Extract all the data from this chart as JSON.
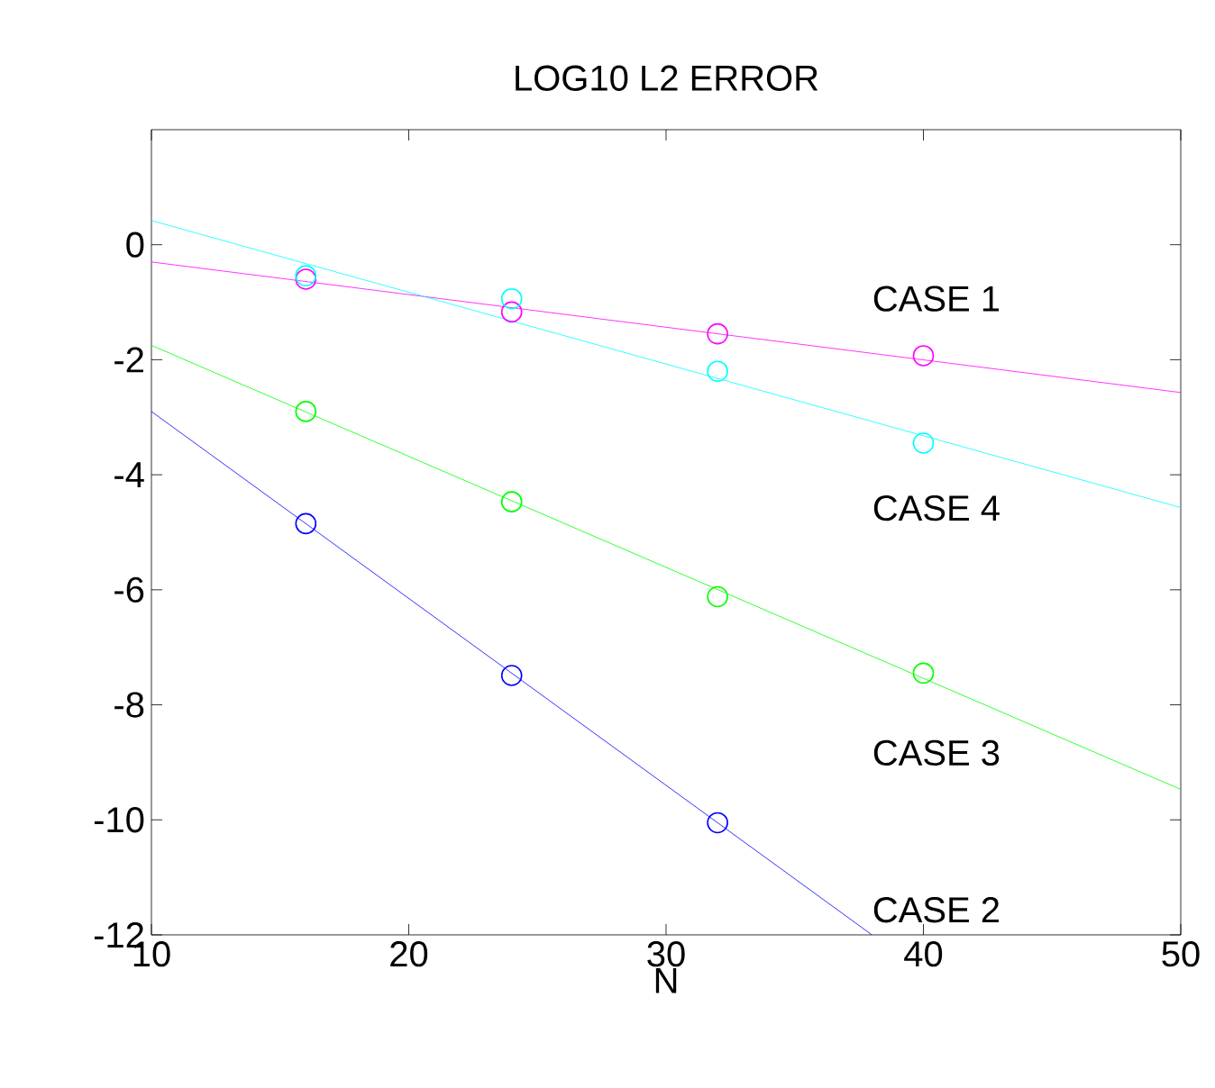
{
  "chart_data": {
    "type": "scatter",
    "title": "LOG10   L2   ERROR",
    "xlabel": "N",
    "xlim": [
      10,
      50
    ],
    "ylim": [
      -12,
      2
    ],
    "xticks": [
      10,
      20,
      30,
      40,
      50
    ],
    "yticks": [
      -12,
      -10,
      -8,
      -6,
      -4,
      -2,
      0
    ],
    "grid": false,
    "marker": "circle",
    "series": [
      {
        "color": "#ff00ff",
        "x": [
          16,
          24,
          32,
          40
        ],
        "values": [
          -0.6,
          -1.17,
          -1.55,
          -1.93
        ]
      },
      {
        "type": "line",
        "marker": "none",
        "color": "#ff00ff",
        "x": [
          10,
          50
        ],
        "values": [
          -0.3,
          -2.57
        ]
      },
      {
        "color": "#00ffff",
        "x": [
          16,
          24,
          32,
          40
        ],
        "values": [
          -0.54,
          -0.94,
          -2.2,
          -3.45
        ]
      },
      {
        "type": "line",
        "marker": "none",
        "color": "#00ffff",
        "x": [
          10,
          50
        ],
        "values": [
          0.42,
          -4.57
        ]
      },
      {
        "color": "#00ff00",
        "x": [
          16,
          24,
          32,
          40
        ],
        "values": [
          -2.9,
          -4.47,
          -6.12,
          -7.45
        ]
      },
      {
        "type": "line",
        "marker": "none",
        "color": "#00ff00",
        "x": [
          10,
          50
        ],
        "values": [
          -1.75,
          -9.47
        ]
      },
      {
        "color": "#0000ff",
        "x": [
          16,
          24,
          32
        ],
        "values": [
          -4.85,
          -7.49,
          -10.05
        ]
      },
      {
        "type": "line",
        "marker": "none",
        "color": "#0000ff",
        "x": [
          10,
          38
        ],
        "values": [
          -2.9,
          -12
        ]
      }
    ],
    "annotations": [
      "CASE 1",
      "CASE 4",
      "CASE 3",
      "CASE 2"
    ]
  }
}
